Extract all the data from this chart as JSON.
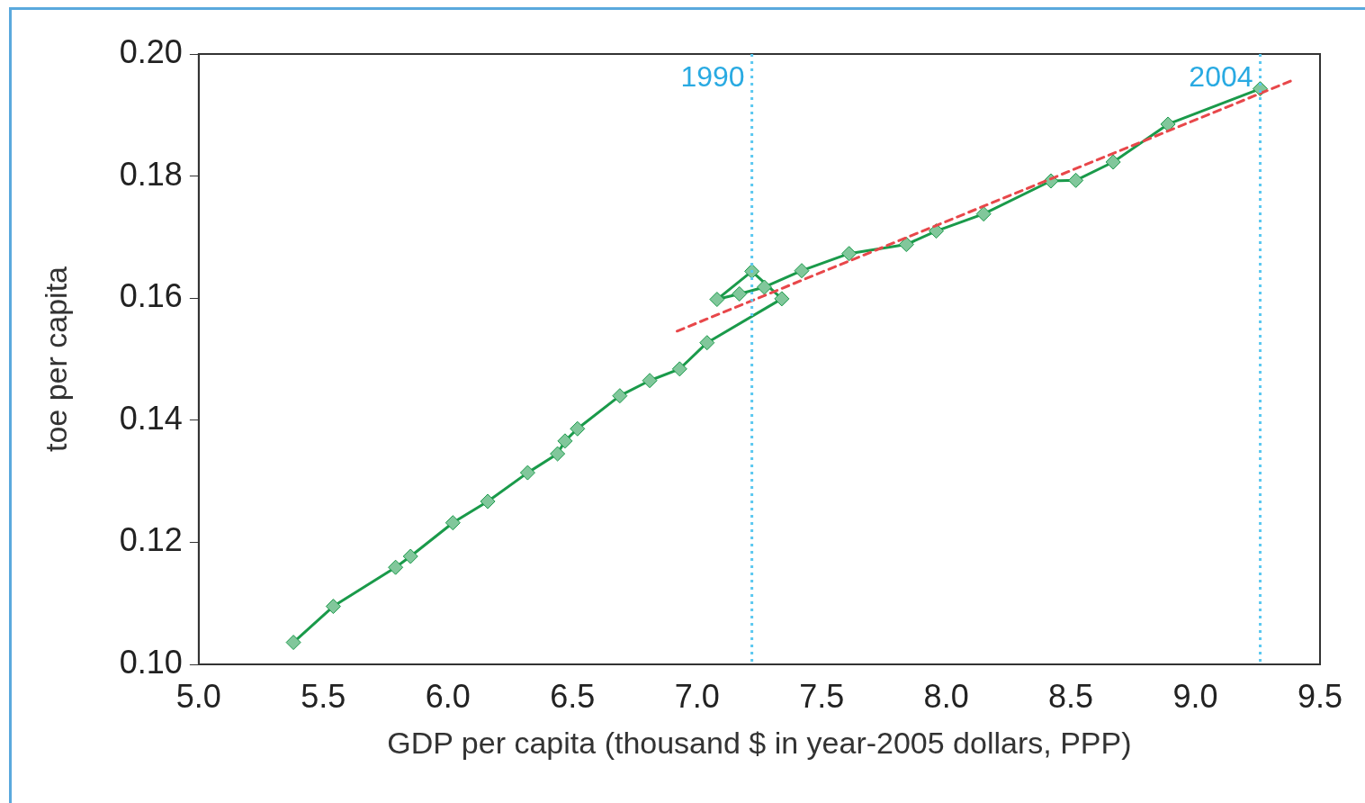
{
  "chart_data": {
    "type": "line",
    "xlabel": "GDP per capita (thousand $ in year-2005 dollars, PPP)",
    "ylabel": "toe per capita",
    "xlim": [
      5.0,
      9.5
    ],
    "xticks": [
      {
        "value": 5.0,
        "label": "5.0"
      },
      {
        "value": 5.5,
        "label": "5.5"
      },
      {
        "value": 6.0,
        "label": "6.0"
      },
      {
        "value": 6.5,
        "label": "6.5"
      },
      {
        "value": 7.0,
        "label": "7.0"
      },
      {
        "value": 7.5,
        "label": "7.5"
      },
      {
        "value": 8.0,
        "label": "8.0"
      },
      {
        "value": 8.5,
        "label": "8.5"
      },
      {
        "value": 9.0,
        "label": "9.0"
      },
      {
        "value": 9.5,
        "label": "9.5"
      }
    ],
    "ylim": [
      0.1,
      0.2
    ],
    "yticks": [
      {
        "value": 0.1,
        "label": "0.10"
      },
      {
        "value": 0.12,
        "label": "0.12"
      },
      {
        "value": 0.14,
        "label": "0.14"
      },
      {
        "value": 0.16,
        "label": "0.16"
      },
      {
        "value": 0.18,
        "label": "0.18"
      },
      {
        "value": 0.2,
        "label": "0.20"
      }
    ],
    "grid": false,
    "legend": false,
    "series": [
      {
        "type": "line",
        "color": "#1a9a4a",
        "marker": "diamond",
        "line_style": "solid",
        "x": [
          5.38,
          5.54,
          5.79,
          5.85,
          6.02,
          6.16,
          6.32,
          6.44,
          6.47,
          6.52,
          6.69,
          6.81,
          6.93,
          7.04,
          7.34,
          7.22,
          7.08,
          7.17,
          7.27,
          7.42,
          7.61,
          7.84,
          7.96,
          8.15,
          8.42,
          8.52,
          8.67,
          8.89,
          9.26
        ],
        "values": [
          0.1036,
          0.1095,
          0.1159,
          0.1177,
          0.1232,
          0.1267,
          0.1314,
          0.1345,
          0.1366,
          0.1386,
          0.144,
          0.1465,
          0.1484,
          0.1527,
          0.1599,
          0.1644,
          0.1598,
          0.1607,
          0.1618,
          0.1645,
          0.1673,
          0.1688,
          0.171,
          0.1738,
          0.1792,
          0.1793,
          0.1823,
          0.1885,
          0.1943
        ]
      },
      {
        "type": "line",
        "color": "#e8474a",
        "marker": "none",
        "line_style": "dashed",
        "x": [
          6.92,
          9.39
        ],
        "values": [
          0.1546,
          0.1957
        ]
      }
    ],
    "ref_lines": [
      {
        "axis": "x",
        "value": 7.22,
        "color": "#5bc8f0",
        "line_style": "dotted"
      },
      {
        "axis": "x",
        "value": 9.26,
        "color": "#5bc8f0",
        "line_style": "dotted"
      }
    ],
    "annotations": [
      {
        "text": "1990",
        "x": 7.22,
        "y": 0.196
      },
      {
        "text": "2004",
        "x": 9.26,
        "y": 0.196
      }
    ]
  }
}
